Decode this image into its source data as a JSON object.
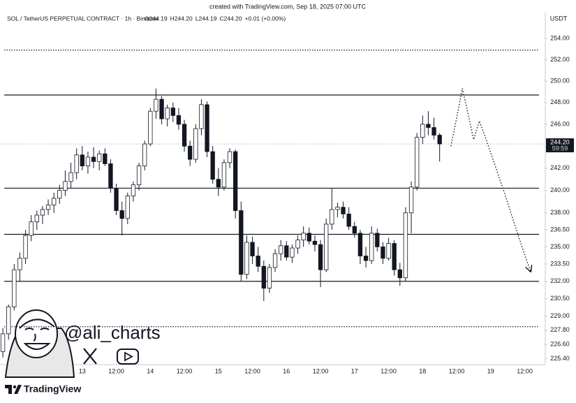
{
  "header": {
    "created": "created with TradingView.com, Sep 18, 2025 07:00 UTC"
  },
  "chart_data": {
    "type": "candlestick",
    "symbol": "SOL / TetherUS PERPETUAL CONTRACT · 1h · Binance",
    "ohlc_legend": [
      "O244.19",
      "H244.20",
      "L244.19",
      "C244.20",
      "+0.01 (+0.00%)"
    ],
    "currency": "USDT",
    "categories": [
      null,
      null,
      null,
      null,
      null,
      null,
      null,
      null,
      null,
      null,
      null,
      null,
      null,
      null,
      "13",
      null,
      null,
      null,
      null,
      null,
      "12:00",
      null,
      null,
      null,
      null,
      null,
      "14",
      null,
      null,
      null,
      null,
      null,
      "12:00",
      null,
      null,
      null,
      null,
      null,
      "15",
      null,
      null,
      null,
      null,
      null,
      "12:00",
      null,
      null,
      null,
      null,
      null,
      "16",
      null,
      null,
      null,
      null,
      null,
      "12:00",
      null,
      null,
      null,
      null,
      null,
      "17",
      null,
      null,
      null,
      null,
      null,
      "12:00",
      null,
      null,
      null,
      null,
      null,
      "18",
      null,
      null,
      null,
      null,
      null,
      "12:00",
      null,
      null,
      null,
      null,
      null,
      "19",
      null,
      null,
      null,
      null,
      null,
      "12:00",
      null,
      null,
      null
    ],
    "open": [
      226,
      227.5,
      229.8,
      233,
      234,
      236,
      237.2,
      237.8,
      238.3,
      238.7,
      239.3,
      240,
      240.8,
      241.6,
      243.2,
      242.2,
      243,
      242.6,
      243.3,
      242.4,
      240.2,
      238.2,
      237.5,
      239.5,
      240.5,
      242.2,
      244.2,
      247.2,
      248.3,
      246.5,
      247.5,
      246.8,
      246,
      244,
      242.8,
      245.6,
      247.8,
      243.5,
      241,
      240.3,
      242.5,
      243.5,
      238.2,
      232.6,
      235.4,
      234.2,
      233.3,
      231.4,
      233.2,
      234.4,
      235.1,
      234.1,
      234.9,
      235.6,
      236.2,
      235.5,
      235.2,
      233,
      237,
      238.3,
      238.5,
      237.9,
      236.8,
      236.2,
      234.2,
      233.8,
      236.2,
      235,
      234,
      235.3,
      233,
      232.3,
      238,
      240.3,
      244.8,
      246,
      245.7,
      245,
      null,
      null,
      null,
      null,
      null,
      null,
      null,
      null,
      null,
      null,
      null,
      null,
      null,
      null,
      null,
      null,
      null,
      null
    ],
    "high": [
      228,
      230,
      233.5,
      234.5,
      236.5,
      237.8,
      238.2,
      238.6,
      239.2,
      239.8,
      240.5,
      241.8,
      242.5,
      243.8,
      244,
      243.5,
      243.9,
      243.6,
      243.8,
      242.8,
      240.6,
      239,
      239.8,
      240.8,
      242.5,
      244.5,
      247.5,
      249.3,
      248.6,
      247.8,
      248,
      247.5,
      246.4,
      244.5,
      246,
      248.3,
      248.1,
      244,
      242,
      242.8,
      243.8,
      243.7,
      239,
      236,
      235.9,
      235,
      233.8,
      233.5,
      234.8,
      235.6,
      235.5,
      235.2,
      236,
      236.8,
      236.7,
      236,
      235.6,
      237.5,
      240.2,
      238.9,
      239,
      238.5,
      237.2,
      236.5,
      235,
      236.8,
      236.6,
      235.4,
      235.8,
      235.6,
      233.6,
      238.5,
      240.8,
      245.2,
      246.8,
      247.2,
      246.6,
      245.2,
      null,
      null,
      null,
      null,
      null,
      null,
      null,
      null,
      null,
      null,
      null,
      null,
      null,
      null,
      null,
      null,
      null,
      null
    ],
    "low": [
      225.5,
      227,
      229.5,
      232,
      233.5,
      235.5,
      236.5,
      237,
      237.8,
      238,
      238.8,
      239.5,
      240.2,
      241,
      241.8,
      241.5,
      242,
      241.8,
      242.2,
      239.8,
      237.8,
      236,
      237,
      239,
      240,
      241.8,
      244,
      246.5,
      246,
      245.8,
      246.2,
      245.5,
      243.5,
      242.2,
      242.5,
      245,
      243,
      240.6,
      239.5,
      240,
      242,
      237.5,
      232,
      232.2,
      233.5,
      232.8,
      230.3,
      231,
      232.8,
      233.8,
      233.8,
      233.6,
      234.4,
      235,
      235.2,
      234.6,
      231.5,
      232.8,
      236.5,
      237.6,
      237.5,
      236.5,
      235.8,
      233.5,
      233.2,
      233.5,
      234.6,
      233.5,
      233.8,
      232.5,
      231.6,
      232,
      236.2,
      240,
      244.2,
      245,
      244.6,
      242.6,
      null,
      null,
      null,
      null,
      null,
      null,
      null,
      null,
      null,
      null,
      null,
      null,
      null,
      null,
      null,
      null,
      null,
      null
    ],
    "close": [
      227.5,
      229.8,
      233,
      234,
      236,
      237.2,
      237.8,
      238.3,
      238.7,
      239.3,
      240,
      240.8,
      241.6,
      243.2,
      242.2,
      243,
      242.6,
      243.3,
      242.4,
      240.2,
      238.2,
      237.5,
      239.5,
      240.5,
      242.2,
      244.2,
      247.2,
      248.3,
      246.5,
      247.5,
      246.8,
      246,
      244,
      242.8,
      245.6,
      247.8,
      243.5,
      241,
      240.3,
      242.5,
      243.5,
      238.2,
      232.6,
      235.4,
      234.2,
      233.3,
      231.4,
      233.2,
      234.4,
      235.1,
      234.1,
      234.9,
      235.6,
      236.2,
      235.5,
      235.2,
      233,
      237,
      238.3,
      238.5,
      237.9,
      236.8,
      236.2,
      234.2,
      233.8,
      236.2,
      235,
      234,
      235.3,
      233,
      232.3,
      238,
      240.3,
      244.8,
      246,
      245.7,
      245,
      244.2,
      null,
      null,
      null,
      null,
      null,
      null,
      null,
      null,
      null,
      null,
      null,
      null,
      null,
      null,
      null,
      null,
      null,
      null
    ],
    "up_color": "#ffffff",
    "down_color": "#131722",
    "levels": [
      248.7,
      240.2,
      236.1,
      232.0
    ],
    "dotted_levels": [
      252.9,
      228.1
    ],
    "projection": [
      null,
      null,
      null,
      null,
      null,
      null,
      null,
      null,
      null,
      null,
      null,
      null,
      null,
      null,
      null,
      null,
      null,
      null,
      null,
      null,
      null,
      null,
      null,
      null,
      null,
      null,
      null,
      null,
      null,
      null,
      null,
      null,
      null,
      null,
      null,
      null,
      null,
      null,
      null,
      null,
      null,
      null,
      null,
      null,
      null,
      null,
      null,
      null,
      null,
      null,
      null,
      null,
      null,
      null,
      null,
      null,
      null,
      null,
      null,
      null,
      null,
      null,
      null,
      null,
      null,
      null,
      null,
      null,
      null,
      null,
      null,
      null,
      null,
      null,
      null,
      null,
      null,
      null,
      null,
      244.0,
      246.6,
      249.3,
      247.0,
      244.6,
      246.3,
      244.9,
      243.4,
      241.9,
      240.4,
      238.9,
      237.3,
      235.8,
      234.3,
      232.9,
      null,
      null
    ],
    "last_price": {
      "value": 244.2,
      "label": "244.20"
    },
    "countdown": "59:59",
    "ylim": [
      224.9,
      255.0
    ],
    "log_scale": true,
    "yticks": [
      {
        "value": 254,
        "label": "254.00"
      },
      {
        "value": 252,
        "label": "252.00"
      },
      {
        "value": 250,
        "label": "250.00"
      },
      {
        "value": 248,
        "label": "248.00"
      },
      {
        "value": 246,
        "label": "246.00"
      },
      {
        "value": 242,
        "label": "242.00"
      },
      {
        "value": 240,
        "label": "240.00"
      },
      {
        "value": 238,
        "label": "238.00"
      },
      {
        "value": 236.5,
        "label": "236.50"
      },
      {
        "value": 235,
        "label": "235.00"
      },
      {
        "value": 233.5,
        "label": "233.50"
      },
      {
        "value": 232,
        "label": "232.00"
      },
      {
        "value": 230.5,
        "label": "230.50"
      },
      {
        "value": 229,
        "label": "229.00"
      },
      {
        "value": 227.8,
        "label": "227.80"
      },
      {
        "value": 226.6,
        "label": "226.60"
      },
      {
        "value": 225.4,
        "label": "225.40"
      }
    ]
  },
  "watermark": {
    "handle": "@ali_charts"
  },
  "footer": {
    "brand": "TradingView"
  }
}
